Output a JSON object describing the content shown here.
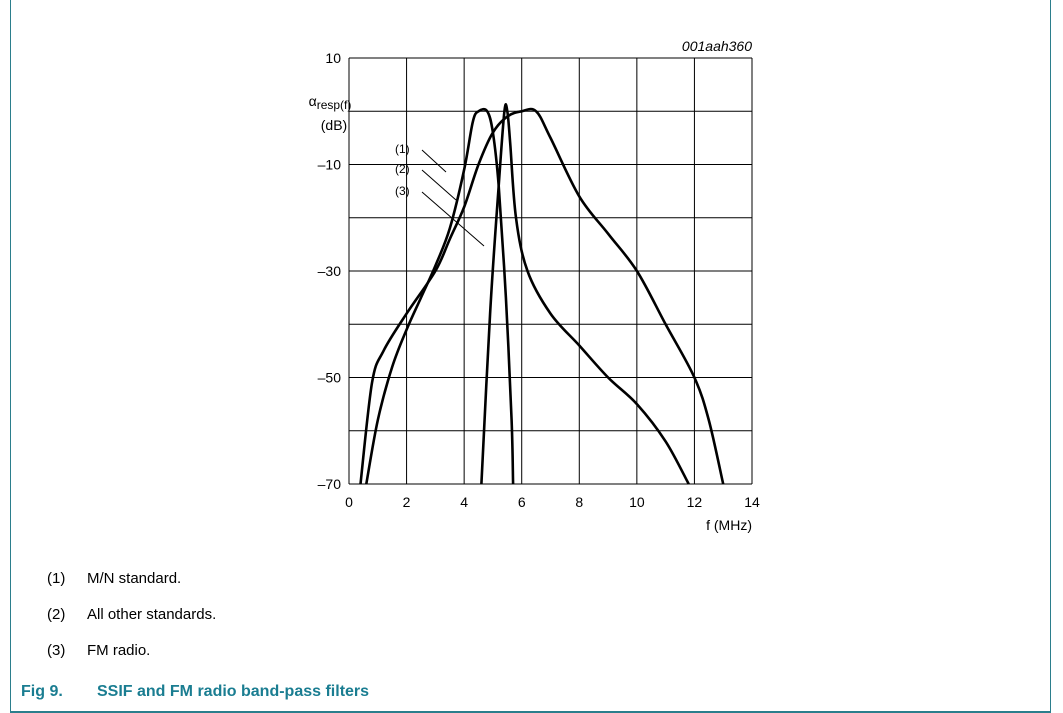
{
  "figure_ref": "001aah360",
  "notes": [
    {
      "num": "(1)",
      "text": "M/N standard."
    },
    {
      "num": "(2)",
      "text": "All other standards."
    },
    {
      "num": "(3)",
      "text": "FM radio."
    }
  ],
  "caption": {
    "number": "Fig 9.",
    "title": "SSIF and FM radio band-pass filters"
  },
  "colors": {
    "caption": "#1a7d91",
    "frame": "#2b7e8c",
    "grid": "#000000",
    "curve": "#000000"
  },
  "chart_data": {
    "type": "line",
    "ylabel_symbol": "α",
    "ylabel_subscript": "resp(f)",
    "ylabel_unit": "(dB)",
    "xlabel": "f (MHz)",
    "xlim": [
      0,
      14
    ],
    "ylim": [
      -70,
      10
    ],
    "x_ticks": [
      "0",
      "2",
      "4",
      "6",
      "8",
      "10",
      "12",
      "14"
    ],
    "y_ticks": [
      "10",
      "–10",
      "–30",
      "–50",
      "–70"
    ],
    "grid": true,
    "curve_labels": [
      "(1)",
      "(2)",
      "(3)"
    ],
    "series": [
      {
        "name": "(1)",
        "points": [
          [
            0.6,
            -70
          ],
          [
            1.0,
            -58
          ],
          [
            1.5,
            -48
          ],
          [
            2.0,
            -41
          ],
          [
            2.5,
            -35
          ],
          [
            3.0,
            -29
          ],
          [
            3.5,
            -22
          ],
          [
            4.0,
            -11
          ],
          [
            4.3,
            -2
          ],
          [
            4.5,
            0
          ],
          [
            4.8,
            0
          ],
          [
            5.0,
            -4
          ],
          [
            5.2,
            -14
          ],
          [
            5.45,
            -35
          ],
          [
            5.65,
            -58
          ],
          [
            5.7,
            -70
          ]
        ]
      },
      {
        "name": "(2)",
        "points": [
          [
            0.4,
            -70
          ],
          [
            0.8,
            -51
          ],
          [
            1.2,
            -45
          ],
          [
            2.0,
            -38
          ],
          [
            3.0,
            -30
          ],
          [
            3.5,
            -24
          ],
          [
            4.0,
            -18
          ],
          [
            4.5,
            -10
          ],
          [
            5.0,
            -4
          ],
          [
            5.5,
            -1
          ],
          [
            6.0,
            0
          ],
          [
            6.5,
            0
          ],
          [
            7.0,
            -5
          ],
          [
            8.0,
            -16
          ],
          [
            9.0,
            -23
          ],
          [
            10.0,
            -30
          ],
          [
            11.0,
            -40
          ],
          [
            12.0,
            -50
          ],
          [
            12.5,
            -58
          ],
          [
            13.0,
            -70
          ]
        ]
      },
      {
        "name": "(3)",
        "points": [
          [
            4.6,
            -70
          ],
          [
            4.9,
            -38
          ],
          [
            5.2,
            -14
          ],
          [
            5.4,
            0
          ],
          [
            5.5,
            0
          ],
          [
            5.6,
            -6
          ],
          [
            5.8,
            -20
          ],
          [
            6.2,
            -30
          ],
          [
            7.0,
            -38
          ],
          [
            8.0,
            -44
          ],
          [
            9.0,
            -50
          ],
          [
            10.0,
            -55
          ],
          [
            11.0,
            -62
          ],
          [
            11.8,
            -70
          ]
        ]
      }
    ]
  }
}
